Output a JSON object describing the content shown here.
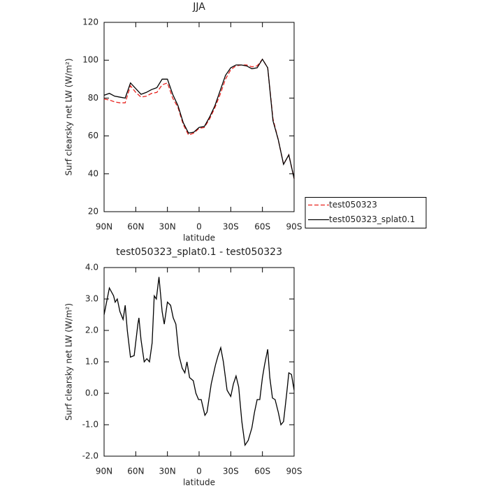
{
  "chart_data": [
    {
      "type": "line",
      "title": "JJA",
      "xlabel": "latitude",
      "ylabel": "Surf clearsky net LW (W/m²)",
      "x": [
        90,
        85,
        80,
        75,
        70,
        65,
        60,
        55,
        50,
        45,
        40,
        35,
        30,
        25,
        20,
        15,
        10,
        5,
        0,
        -5,
        -10,
        -15,
        -20,
        -25,
        -30,
        -35,
        -40,
        -45,
        -50,
        -55,
        -60,
        -65,
        -70,
        -75,
        -80,
        -85,
        -90
      ],
      "series": [
        {
          "name": "test050323",
          "color": "#e8231f",
          "style": "dashed",
          "values": [
            79.5,
            79,
            78,
            77.5,
            77.5,
            86.5,
            83,
            80.5,
            81,
            82.5,
            83,
            87,
            88,
            80,
            75,
            66,
            60.5,
            61.5,
            64,
            64.5,
            69,
            75,
            82,
            90,
            95,
            97,
            97.5,
            97.5,
            96.5,
            97,
            100.5,
            96,
            69,
            58,
            45,
            50,
            37.5
          ]
        },
        {
          "name": "test050323_splat0.1",
          "color": "#000000",
          "style": "solid",
          "values": [
            81.5,
            82.5,
            81,
            80.5,
            80,
            88,
            85,
            82,
            83,
            84.5,
            85.5,
            90,
            90,
            82,
            76,
            67,
            61.5,
            62,
            64.5,
            65,
            70,
            76,
            84,
            92,
            96,
            97.5,
            97.5,
            97,
            95.5,
            96,
            100.5,
            96,
            68,
            58,
            45,
            50,
            37.5
          ]
        }
      ],
      "xlim": [
        90,
        -90
      ],
      "xticks": [
        {
          "value": 90,
          "label": "90N"
        },
        {
          "value": 60,
          "label": "60N"
        },
        {
          "value": 30,
          "label": "30N"
        },
        0,
        {
          "value": -30,
          "label": "30S"
        },
        {
          "value": -60,
          "label": "60S"
        },
        {
          "value": -90,
          "label": "90S"
        }
      ],
      "ylim": [
        20,
        120
      ],
      "yticks": [
        20,
        40,
        60,
        80,
        100,
        120
      ],
      "legend": "right"
    },
    {
      "type": "line",
      "title": "test050323_splat0.1 - test050323",
      "xlabel": "latitude",
      "ylabel": "Surf clearsky net LW (W/m²)",
      "x": [
        90,
        85,
        81,
        79.5,
        77.5,
        75,
        72,
        70,
        68,
        65,
        61.5,
        58,
        57,
        55,
        52,
        49.5,
        47,
        44.5,
        42.5,
        40.5,
        38,
        35,
        33,
        30,
        27,
        24.5,
        22,
        19,
        16,
        13.5,
        11.5,
        9,
        5.5,
        3,
        0.5,
        -2,
        -5.5,
        -7.5,
        -11.5,
        -15.5,
        -18,
        -20.5,
        -23,
        -26.5,
        -30,
        -32.5,
        -35,
        -37.5,
        -40.5,
        -43.5,
        -46.5,
        -50,
        -52.5,
        -55,
        -57.5,
        -60,
        -62,
        -65,
        -67,
        -69.5,
        -72,
        -75,
        -77.5,
        -80,
        -83,
        -85,
        -87.5,
        -90
      ],
      "series": [
        {
          "color": "#000000",
          "style": "solid",
          "values": [
            2.5,
            3.35,
            3.1,
            2.9,
            3.0,
            2.6,
            2.35,
            2.8,
            2.0,
            1.15,
            1.2,
            2.2,
            2.4,
            1.7,
            1.0,
            1.1,
            1.0,
            1.6,
            3.1,
            3.0,
            3.7,
            2.6,
            2.2,
            2.9,
            2.8,
            2.4,
            2.2,
            1.2,
            0.8,
            0.65,
            1.0,
            0.5,
            0.4,
            0.0,
            -0.2,
            -0.2,
            -0.7,
            -0.6,
            0.3,
            0.9,
            1.2,
            1.45,
            1.0,
            0.1,
            -0.1,
            0.3,
            0.55,
            0.2,
            -0.9,
            -1.65,
            -1.5,
            -1.1,
            -0.6,
            -0.2,
            -0.2,
            0.5,
            0.9,
            1.4,
            0.5,
            -0.15,
            -0.2,
            -0.6,
            -1.0,
            -0.9,
            0.0,
            0.65,
            0.6,
            0.1
          ]
        }
      ],
      "xlim": [
        90,
        -90
      ],
      "xticks": [
        {
          "value": 90,
          "label": "90N"
        },
        {
          "value": 60,
          "label": "60N"
        },
        {
          "value": 30,
          "label": "30N"
        },
        0,
        {
          "value": -30,
          "label": "30S"
        },
        {
          "value": -60,
          "label": "60S"
        },
        {
          "value": -90,
          "label": "90S"
        }
      ],
      "ylim": [
        -2,
        4
      ],
      "yticks": [
        {
          "value": -2,
          "label": "-2.0"
        },
        {
          "value": -1,
          "label": "-1.0"
        },
        {
          "value": 0,
          "label": "0.0"
        },
        {
          "value": 1,
          "label": "1.0"
        },
        {
          "value": 2,
          "label": "2.0"
        },
        {
          "value": 3,
          "label": "3.0"
        },
        {
          "value": 4,
          "label": "4.0"
        }
      ]
    }
  ]
}
